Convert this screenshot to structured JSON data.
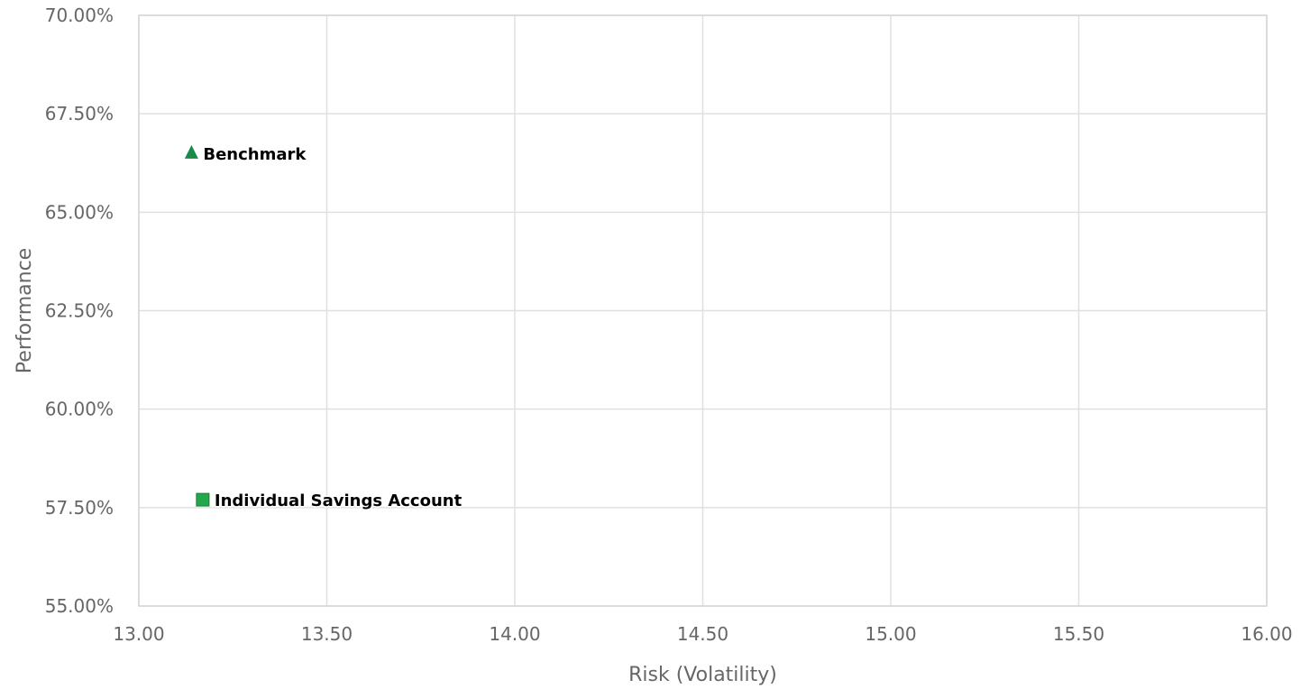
{
  "chart_data": {
    "type": "scatter",
    "title": "",
    "xlabel": "Risk (Volatility)",
    "ylabel": "Performance",
    "xlim": [
      13.0,
      16.0
    ],
    "ylim": [
      55.0,
      70.0
    ],
    "x_ticks": [
      13.0,
      13.5,
      14.0,
      14.5,
      15.0,
      15.5,
      16.0
    ],
    "x_tick_labels": [
      "13.00",
      "13.50",
      "14.00",
      "14.50",
      "15.00",
      "15.50",
      "16.00"
    ],
    "y_ticks": [
      55.0,
      57.5,
      60.0,
      62.5,
      65.0,
      67.5,
      70.0
    ],
    "y_tick_labels": [
      "55.00%",
      "57.50%",
      "60.00%",
      "62.50%",
      "65.00%",
      "67.50%",
      "70.00%"
    ],
    "grid": true,
    "legend": "none",
    "series": [
      {
        "name": "Benchmark",
        "marker": "triangle",
        "color": "#1a8a4a",
        "x": [
          13.14
        ],
        "y": [
          66.5
        ]
      },
      {
        "name": "Individual Savings Account",
        "marker": "square",
        "color": "#22a84a",
        "x": [
          13.17
        ],
        "y": [
          57.7
        ]
      }
    ]
  }
}
